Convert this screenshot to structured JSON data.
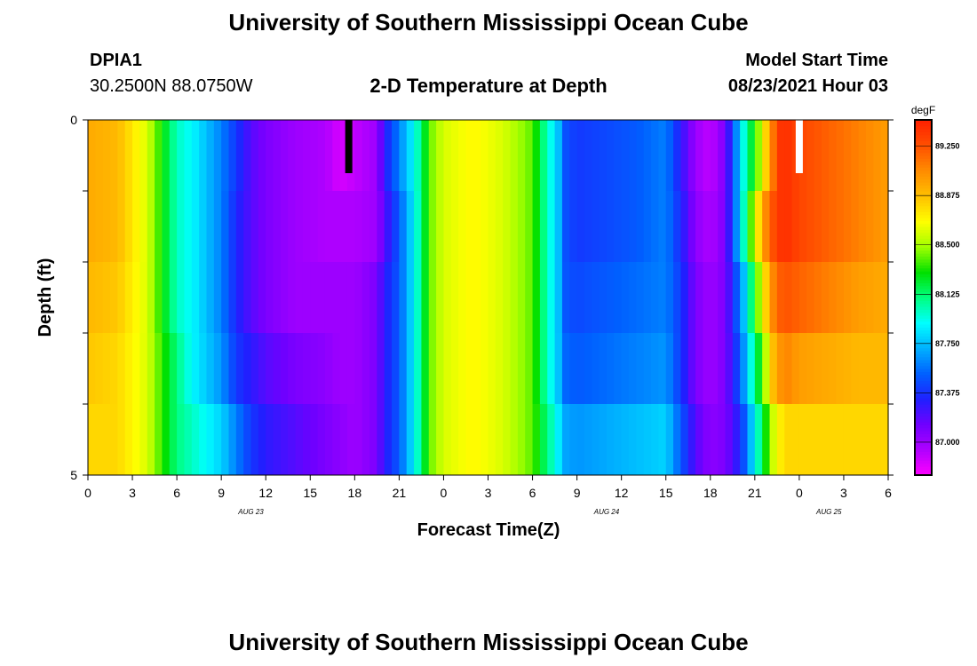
{
  "header": {
    "title": "University of Southern Mississippi Ocean Cube",
    "footer_title": "University of Southern Mississippi Ocean Cube",
    "station": "DPIA1",
    "coords": "30.2500N  88.0750W",
    "plot_title": "2-D Temperature at Depth",
    "model_label": "Model Start Time",
    "model_time": "08/23/2021 Hour 03"
  },
  "chart_data": {
    "type": "heatmap",
    "title": "2-D Temperature at Depth",
    "xlabel": "Forecast Time(Z)",
    "ylabel": "Depth (ft)",
    "x_ticks": [
      "0",
      "3",
      "6",
      "9",
      "12",
      "15",
      "18",
      "21",
      "0",
      "3",
      "6",
      "9",
      "12",
      "15",
      "18",
      "21",
      "0",
      "3",
      "6"
    ],
    "day_labels": [
      {
        "label": "AUG 23",
        "at_hour": 11
      },
      {
        "label": "AUG 24",
        "at_hour": 35
      },
      {
        "label": "AUG 25",
        "at_hour": 50
      }
    ],
    "y_ticks": [
      "0",
      "",
      "",
      "",
      "",
      "5"
    ],
    "ylim": [
      0,
      5
    ],
    "xlim_hours": [
      0,
      54
    ],
    "depths_ft": [
      0.5,
      1.5,
      2.5,
      3.5,
      4.5
    ],
    "colorbar": {
      "unit": "degF",
      "tick_labels": [
        "89.250",
        "88.875",
        "88.500",
        "88.125",
        "87.750",
        "87.375",
        "87.000"
      ],
      "tick_values": [
        89.25,
        88.875,
        88.5,
        88.125,
        87.75,
        87.375,
        87.0
      ],
      "range": [
        86.75,
        89.45
      ],
      "colors": [
        "#ff00ff",
        "#b000ff",
        "#7000ff",
        "#2020ff",
        "#0060ff",
        "#00b0ff",
        "#00ffff",
        "#00ff80",
        "#00e000",
        "#a0ff00",
        "#ffff00",
        "#ffc000",
        "#ff8c00",
        "#ff5000",
        "#ff2000"
      ]
    },
    "markers": [
      {
        "hour": 17.6,
        "color": "#000000"
      },
      {
        "hour": 48.0,
        "color": "#ffffff"
      }
    ],
    "series": [
      {
        "depth_ft": 0.5,
        "hours": [
          0,
          2,
          4,
          6,
          7,
          9,
          10,
          11,
          12,
          14,
          16,
          17,
          18,
          19.5,
          20,
          21,
          21.8,
          22.5,
          23,
          24,
          26,
          28,
          30,
          31,
          31.7,
          32,
          33,
          35,
          37,
          39,
          40,
          41,
          42,
          43,
          44,
          44.5,
          45,
          45.6,
          46,
          46.6,
          47,
          48,
          50,
          52,
          54
        ],
        "values": [
          88.95,
          88.9,
          88.6,
          88.0,
          87.9,
          87.6,
          87.4,
          87.2,
          87.1,
          87.0,
          86.95,
          86.85,
          86.9,
          87.0,
          87.3,
          87.6,
          87.85,
          88.1,
          88.4,
          88.6,
          88.7,
          88.6,
          88.4,
          88.0,
          87.8,
          87.5,
          87.4,
          87.45,
          87.5,
          87.6,
          87.3,
          87.0,
          86.9,
          87.1,
          87.8,
          88.1,
          88.3,
          88.7,
          89.0,
          89.35,
          89.4,
          89.3,
          89.2,
          89.1,
          89.0
        ]
      },
      {
        "depth_ft": 1.5,
        "hours": [
          0,
          2,
          4,
          6,
          7,
          9,
          10,
          11,
          12,
          14,
          16,
          17,
          18,
          19.5,
          20,
          21,
          21.8,
          22.5,
          23,
          24,
          26,
          28,
          30,
          31,
          31.7,
          32,
          33,
          35,
          37,
          39,
          40,
          41,
          42,
          43,
          44,
          44.5,
          45,
          45.6,
          46,
          46.6,
          47,
          48,
          50,
          52,
          54
        ],
        "values": [
          88.95,
          88.9,
          88.6,
          88.0,
          87.9,
          87.6,
          87.35,
          87.2,
          87.1,
          87.0,
          86.95,
          86.95,
          86.95,
          87.0,
          87.2,
          87.5,
          87.8,
          88.1,
          88.4,
          88.6,
          88.7,
          88.6,
          88.4,
          88.0,
          87.8,
          87.5,
          87.4,
          87.45,
          87.5,
          87.6,
          87.35,
          87.05,
          86.95,
          87.1,
          87.8,
          88.2,
          88.6,
          89.0,
          89.2,
          89.35,
          89.4,
          89.3,
          89.2,
          89.1,
          89.0
        ]
      },
      {
        "depth_ft": 2.5,
        "hours": [
          0,
          2,
          4,
          6,
          7,
          9,
          10,
          11,
          12,
          14,
          16,
          17,
          18,
          19.5,
          20,
          21,
          21.8,
          22.5,
          23,
          24,
          26,
          28,
          30,
          31,
          31.7,
          32,
          33,
          35,
          37,
          39,
          40,
          41,
          42,
          43,
          44,
          44.5,
          45,
          45.6,
          46,
          46.6,
          47,
          48,
          50,
          52,
          54
        ],
        "values": [
          88.9,
          88.85,
          88.6,
          88.0,
          87.9,
          87.6,
          87.35,
          87.2,
          87.1,
          87.0,
          87.0,
          87.0,
          87.0,
          87.1,
          87.3,
          87.5,
          87.8,
          88.1,
          88.4,
          88.6,
          88.7,
          88.6,
          88.4,
          88.0,
          87.8,
          87.5,
          87.45,
          87.5,
          87.55,
          87.6,
          87.4,
          87.1,
          87.0,
          87.1,
          87.6,
          87.9,
          88.3,
          88.7,
          89.0,
          89.2,
          89.25,
          89.2,
          89.1,
          89.0,
          88.95
        ]
      },
      {
        "depth_ft": 3.5,
        "hours": [
          0,
          2,
          4,
          6,
          7,
          9,
          10,
          11,
          12,
          14,
          16,
          17,
          18,
          19.5,
          20,
          21,
          21.8,
          22.5,
          23,
          24,
          26,
          28,
          30,
          31,
          31.7,
          32,
          33,
          35,
          37,
          39,
          40,
          41,
          42,
          43,
          44,
          44.5,
          45,
          45.6,
          46,
          46.6,
          47,
          48,
          50,
          52,
          54
        ],
        "values": [
          88.85,
          88.8,
          88.6,
          88.1,
          87.9,
          87.65,
          87.4,
          87.3,
          87.2,
          87.1,
          87.05,
          87.0,
          87.0,
          87.1,
          87.3,
          87.5,
          87.8,
          88.1,
          88.4,
          88.6,
          88.7,
          88.6,
          88.4,
          88.0,
          87.8,
          87.55,
          87.5,
          87.55,
          87.6,
          87.65,
          87.4,
          87.1,
          87.0,
          87.1,
          87.5,
          87.8,
          88.1,
          88.4,
          88.8,
          89.0,
          89.1,
          89.0,
          88.95,
          88.9,
          88.9
        ]
      },
      {
        "depth_ft": 4.5,
        "hours": [
          0,
          2,
          4,
          6,
          7,
          9,
          10,
          11,
          12,
          14,
          16,
          17,
          18,
          19.5,
          20,
          21,
          21.8,
          22.5,
          23,
          24,
          26,
          28,
          30,
          31,
          31.7,
          32,
          33,
          35,
          37,
          39,
          40,
          41,
          42,
          43,
          44,
          44.5,
          45,
          45.6,
          46,
          46.6,
          47,
          48,
          50,
          52,
          54
        ],
        "values": [
          88.8,
          88.8,
          88.6,
          88.1,
          88.0,
          87.8,
          87.6,
          87.4,
          87.3,
          87.2,
          87.1,
          87.05,
          87.0,
          87.1,
          87.3,
          87.5,
          87.8,
          88.1,
          88.4,
          88.6,
          88.7,
          88.6,
          88.4,
          88.1,
          87.9,
          87.7,
          87.65,
          87.7,
          87.75,
          87.8,
          87.5,
          87.2,
          87.05,
          87.1,
          87.35,
          87.6,
          87.9,
          88.2,
          88.5,
          88.7,
          88.8,
          88.8,
          88.8,
          88.8,
          88.8
        ]
      }
    ]
  }
}
